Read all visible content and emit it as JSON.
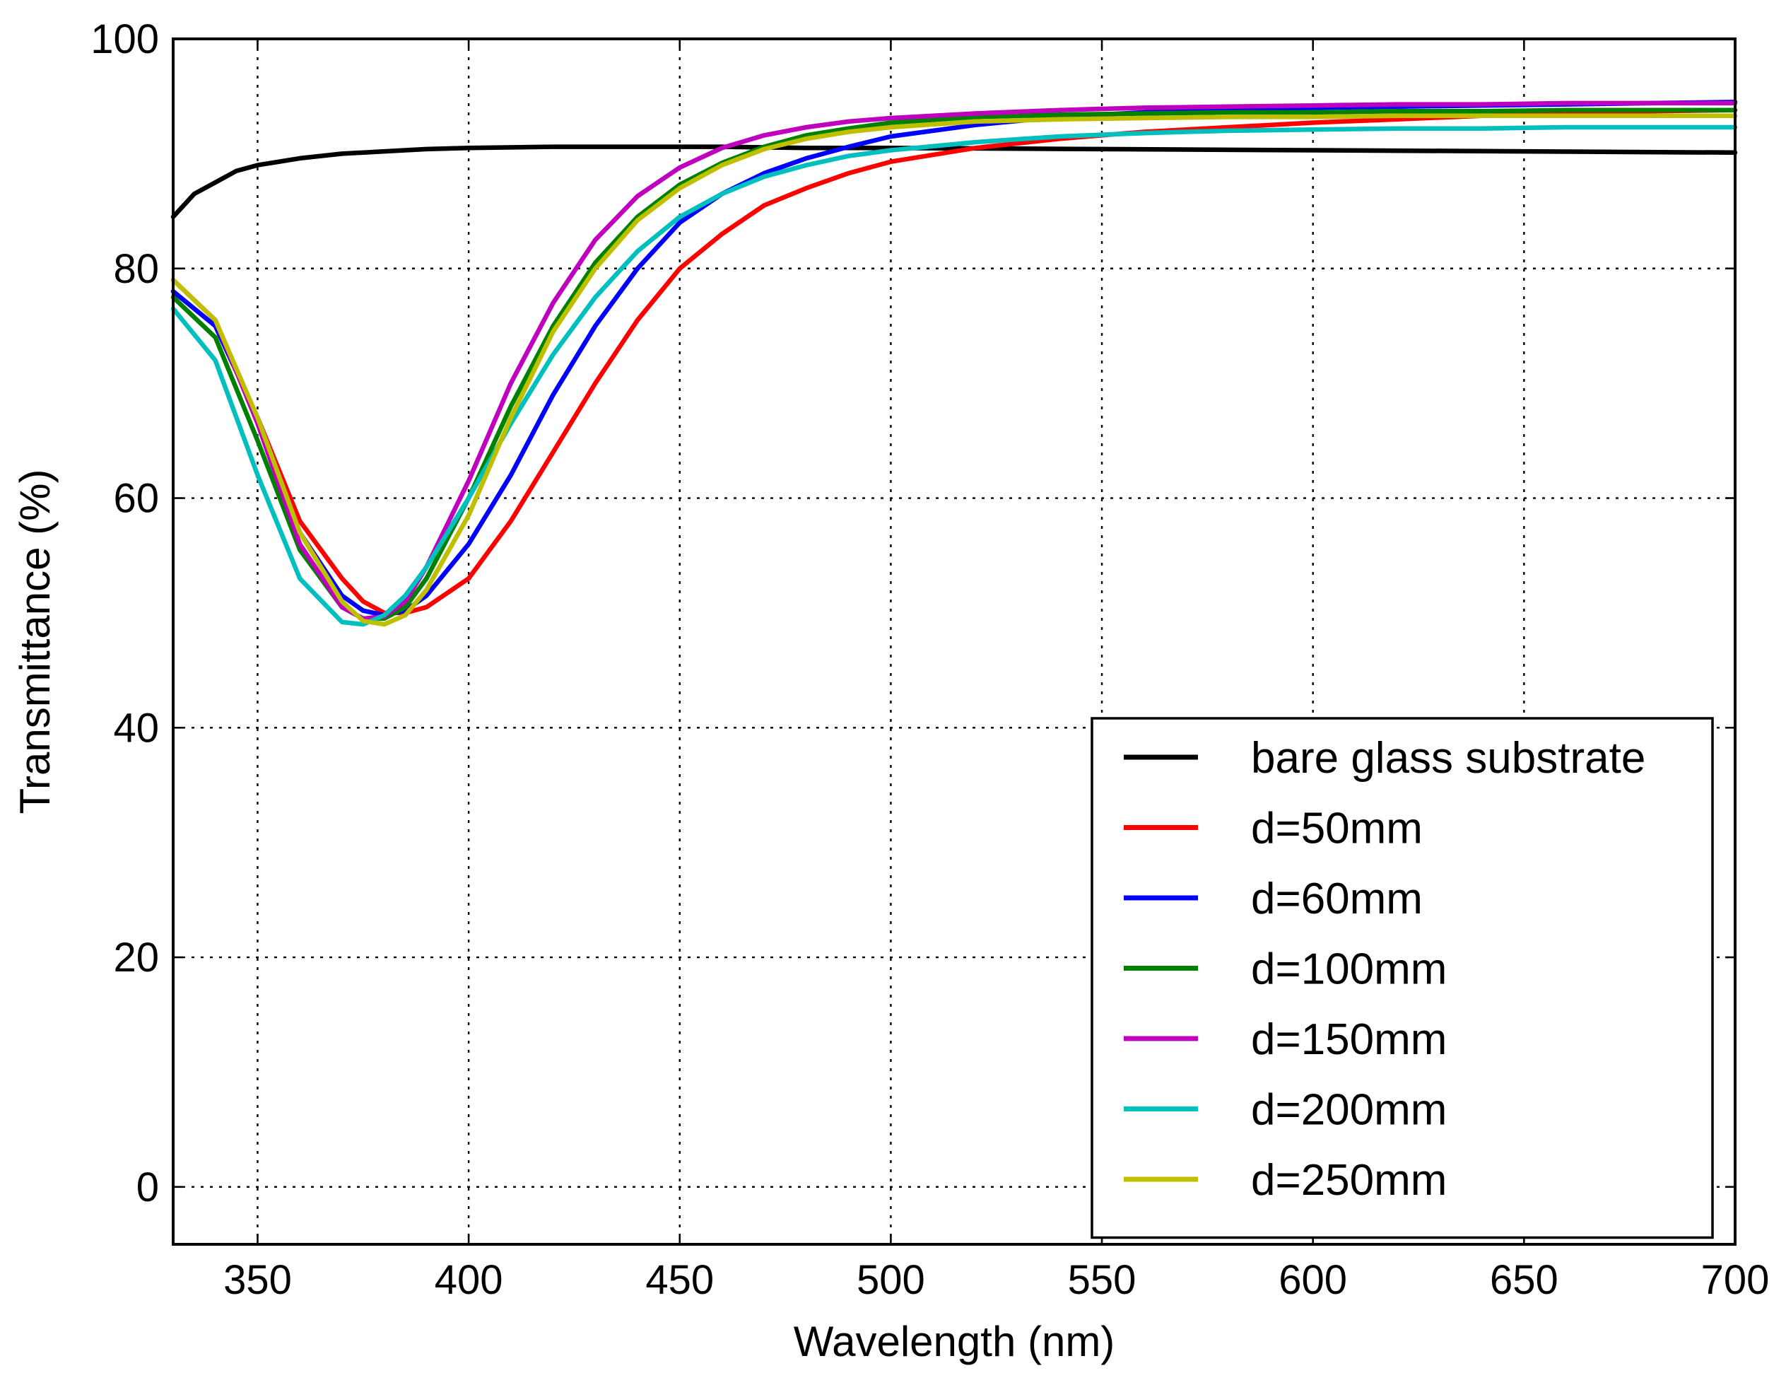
{
  "chart_data": {
    "type": "line",
    "title": "",
    "xlabel": "Wavelength (nm)",
    "ylabel": "Transmittance (%)",
    "xlim": [
      330,
      700
    ],
    "ylim": [
      -5,
      100
    ],
    "grid": true,
    "x_ticks": [
      350,
      400,
      450,
      500,
      550,
      600,
      650,
      700
    ],
    "y_ticks": [
      0,
      20,
      40,
      60,
      80,
      100
    ],
    "x_tick_labels": [
      "350",
      "400",
      "450",
      "500",
      "550",
      "600",
      "650",
      "700"
    ],
    "y_tick_labels": [
      "0",
      "20",
      "40",
      "60",
      "80",
      "100"
    ],
    "legend_position": "lower-right",
    "series": [
      {
        "name": "bare glass substrate",
        "color": "#000000",
        "x": [
          330,
          335,
          340,
          345,
          350,
          360,
          370,
          380,
          390,
          400,
          420,
          440,
          460,
          480,
          500,
          550,
          600,
          650,
          700
        ],
        "y": [
          84.5,
          86.5,
          87.5,
          88.5,
          89.0,
          89.6,
          90.0,
          90.2,
          90.4,
          90.5,
          90.6,
          90.6,
          90.6,
          90.5,
          90.5,
          90.4,
          90.3,
          90.2,
          90.1
        ]
      },
      {
        "name": "d=50mm",
        "color": "#ff0000",
        "x": [
          330,
          340,
          350,
          360,
          370,
          375,
          380,
          385,
          390,
          400,
          410,
          420,
          430,
          440,
          450,
          460,
          470,
          480,
          490,
          500,
          520,
          540,
          560,
          580,
          600,
          620,
          640,
          660,
          680,
          700
        ],
        "y": [
          78,
          75,
          67,
          58,
          53,
          51,
          50,
          50,
          50.5,
          53,
          58,
          64,
          70,
          75.5,
          80,
          83,
          85.5,
          87,
          88.3,
          89.3,
          90.5,
          91.3,
          91.9,
          92.3,
          92.7,
          93,
          93.3,
          93.5,
          93.7,
          93.8
        ]
      },
      {
        "name": "d=60mm",
        "color": "#0000ff",
        "x": [
          330,
          340,
          350,
          360,
          370,
          375,
          380,
          385,
          390,
          400,
          410,
          420,
          430,
          440,
          450,
          460,
          470,
          480,
          490,
          500,
          520,
          540,
          560,
          580,
          600,
          620,
          640,
          660,
          680,
          700
        ],
        "y": [
          78,
          75,
          67,
          57,
          51.5,
          50.2,
          49.8,
          50.2,
          51.5,
          56,
          62,
          69,
          75,
          80,
          84,
          86.5,
          88.3,
          89.6,
          90.6,
          91.5,
          92.5,
          93.2,
          93.6,
          93.8,
          94,
          94.1,
          94.2,
          94.3,
          94.4,
          94.5
        ]
      },
      {
        "name": "d=100mm",
        "color": "#008000",
        "x": [
          330,
          340,
          350,
          360,
          370,
          375,
          380,
          385,
          390,
          400,
          410,
          420,
          430,
          440,
          450,
          460,
          470,
          480,
          490,
          500,
          520,
          540,
          560,
          580,
          600,
          620,
          640,
          660,
          680,
          700
        ],
        "y": [
          77.5,
          74,
          65,
          55.5,
          50.5,
          49.5,
          49.5,
          50.5,
          53,
          60,
          68,
          75,
          80.5,
          84.5,
          87.3,
          89.2,
          90.6,
          91.6,
          92.2,
          92.7,
          93.2,
          93.4,
          93.5,
          93.6,
          93.6,
          93.7,
          93.7,
          93.8,
          93.8,
          93.8
        ]
      },
      {
        "name": "d=150mm",
        "color": "#bf00bf",
        "x": [
          330,
          340,
          350,
          360,
          370,
          375,
          380,
          385,
          390,
          400,
          410,
          420,
          430,
          440,
          450,
          460,
          470,
          480,
          490,
          500,
          520,
          540,
          560,
          580,
          600,
          620,
          640,
          660,
          680,
          700
        ],
        "y": [
          79,
          75.5,
          66.5,
          56,
          50.5,
          49.5,
          49.7,
          51,
          54,
          61.5,
          70,
          77,
          82.5,
          86.3,
          88.8,
          90.5,
          91.6,
          92.3,
          92.8,
          93.1,
          93.5,
          93.8,
          94,
          94.1,
          94.2,
          94.3,
          94.3,
          94.4,
          94.4,
          94.4
        ]
      },
      {
        "name": "d=200mm",
        "color": "#00bfbf",
        "x": [
          330,
          340,
          350,
          360,
          370,
          375,
          380,
          385,
          390,
          400,
          410,
          420,
          430,
          440,
          450,
          460,
          470,
          480,
          490,
          500,
          520,
          540,
          560,
          580,
          600,
          620,
          640,
          660,
          680,
          700
        ],
        "y": [
          76.5,
          72,
          62,
          53,
          49.2,
          49,
          49.8,
          51.5,
          54,
          60,
          66.5,
          72.5,
          77.5,
          81.5,
          84.5,
          86.5,
          88,
          89,
          89.8,
          90.3,
          91,
          91.5,
          91.8,
          92,
          92.1,
          92.2,
          92.2,
          92.3,
          92.3,
          92.3
        ]
      },
      {
        "name": "d=250mm",
        "color": "#bfbf00",
        "x": [
          330,
          340,
          350,
          360,
          370,
          375,
          380,
          385,
          390,
          400,
          410,
          420,
          430,
          440,
          450,
          460,
          470,
          480,
          490,
          500,
          520,
          540,
          560,
          580,
          600,
          620,
          640,
          660,
          680,
          700
        ],
        "y": [
          79,
          75.5,
          67,
          57,
          51,
          49.3,
          49,
          49.8,
          52,
          58.5,
          67,
          74.5,
          80,
          84.2,
          87,
          89,
          90.4,
          91.3,
          91.9,
          92.3,
          92.8,
          93,
          93.1,
          93.2,
          93.2,
          93.3,
          93.3,
          93.3,
          93.3,
          93.3
        ]
      }
    ]
  }
}
